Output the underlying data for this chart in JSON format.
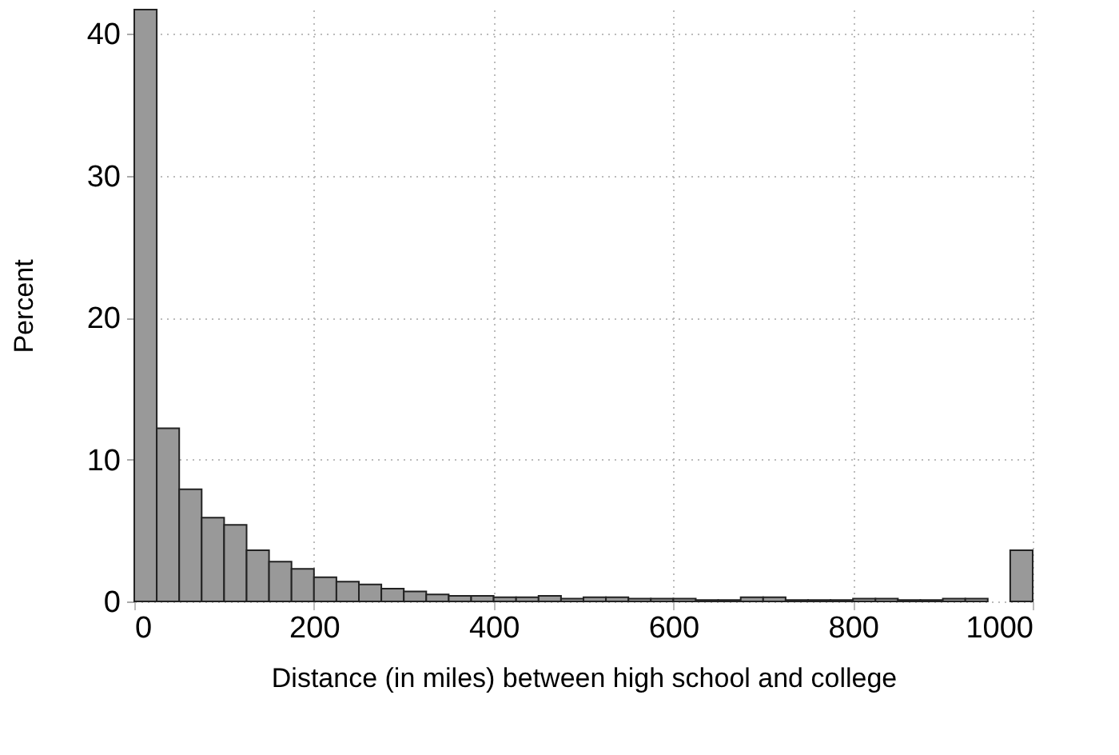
{
  "chart_data": {
    "type": "histogram",
    "xlabel": "Distance (in miles) between high school and college",
    "ylabel": "Percent",
    "bins": [
      0,
      25,
      50,
      75,
      100,
      125,
      150,
      175,
      200,
      225,
      250,
      275,
      300,
      325,
      350,
      375,
      400,
      425,
      450,
      475,
      500,
      525,
      550,
      575,
      600,
      625,
      650,
      675,
      700,
      725,
      750,
      775,
      800,
      825,
      850,
      875,
      900,
      925,
      950,
      975,
      1000
    ],
    "values": [
      41.7,
      12.2,
      7.9,
      5.9,
      5.4,
      3.6,
      2.8,
      2.3,
      1.7,
      1.4,
      1.2,
      0.9,
      0.7,
      0.5,
      0.4,
      0.4,
      0.3,
      0.3,
      0.4,
      0.2,
      0.3,
      0.3,
      0.2,
      0.2,
      0.2,
      0.1,
      0.1,
      0.3,
      0.3,
      0.1,
      0.1,
      0.1,
      0.2,
      0.2,
      0.1,
      0.1,
      0.2,
      0.2,
      null,
      3.6
    ],
    "color": "#999999",
    "xlim": [
      0,
      1000
    ],
    "xticks": [
      0,
      200,
      400,
      600,
      800,
      1000
    ],
    "ylim": [
      0,
      41.7
    ],
    "yticks": [
      0,
      10,
      20,
      30,
      40
    ],
    "grid": true
  }
}
